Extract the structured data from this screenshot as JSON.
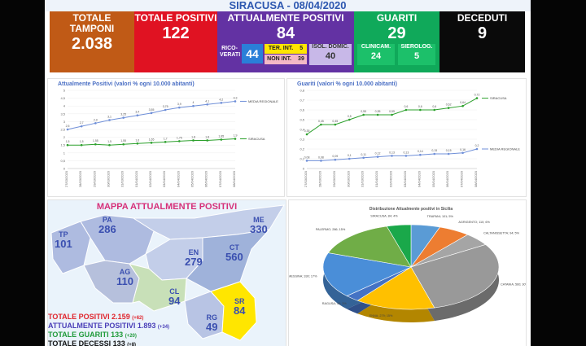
{
  "header": {
    "title": "SIRACUSA -  08/04/2020"
  },
  "tiles": {
    "tamponi": {
      "label": "TOTALE TAMPONI",
      "value": "2.038"
    },
    "positivi": {
      "label": "TOTALE POSITIVI",
      "value": "122"
    },
    "attualmente": {
      "label": "ATTUALMENTE POSITIVI",
      "value": "84",
      "ricoverati_label_1": "RICO-",
      "ricoverati_label_2": "VERATI",
      "ricoverati_value": "44",
      "ter_int_label": "TER. INT.",
      "ter_int_value": "5",
      "non_int_label": "NON INT.",
      "non_int_value": "39",
      "isol_label_1": "ISOL. DOMIC.",
      "isol_value": "40"
    },
    "guariti": {
      "label": "GUARITI",
      "value": "29",
      "clinicam_label": "CLINICAM.",
      "clinicam_value": "24",
      "sierolog_label": "SIEROLOG.",
      "sierolog_value": "5"
    },
    "deceduti": {
      "label": "DECEDUTI",
      "value": "9"
    }
  },
  "map": {
    "title": "MAPPA ATTUALMENTE POSITIVI",
    "provinces": [
      {
        "code": "TP",
        "value": "101"
      },
      {
        "code": "PA",
        "value": "286"
      },
      {
        "code": "ME",
        "value": "330"
      },
      {
        "code": "AG",
        "value": "110"
      },
      {
        "code": "EN",
        "value": "279"
      },
      {
        "code": "CT",
        "value": "560"
      },
      {
        "code": "CL",
        "value": "94"
      },
      {
        "code": "RG",
        "value": "49"
      },
      {
        "code": "SR",
        "value": "84"
      }
    ],
    "stats": [
      {
        "label": "TOTALE POSITIVI 2.159",
        "delta": "(+62)",
        "color": "#e0242c"
      },
      {
        "label": "ATTUALMENTE POSITIVI 1.893",
        "delta": "(+34)",
        "color": "#4a3fb8"
      },
      {
        "label": "TOTALE GUARITI 133",
        "delta": "(+20)",
        "color": "#1f9a3a"
      },
      {
        "label": "TOTALE DECESSI 133",
        "delta": "(+8)",
        "color": "#111111"
      }
    ]
  },
  "chart_data": [
    {
      "type": "line",
      "title": "Attualmente Positivi (valori % ogni 10.000 abitanti)",
      "x": [
        "27/03/2020",
        "28/03/2020",
        "29/03/2020",
        "30/03/2020",
        "31/03/2020",
        "01/04/2020",
        "02/04/2020",
        "03/04/2020",
        "04/04/2020",
        "05/04/2020",
        "06/04/2020",
        "07/04/2020",
        "08/04/2020"
      ],
      "ylim": [
        0,
        5
      ],
      "yticks": [
        "0",
        "0,5",
        "1",
        "1,5",
        "2",
        "2,5",
        "3",
        "3,5",
        "4",
        "4,5",
        "5"
      ],
      "series": [
        {
          "name": "MEDIA REGIONALE",
          "color": "#6f8fd8",
          "values": [
            2.5,
            2.7,
            2.9,
            3.1,
            3.25,
            3.4,
            3.55,
            3.75,
            3.9,
            4.0,
            4.1,
            4.2,
            4.3
          ]
        },
        {
          "name": "SIRACUSA",
          "color": "#2ca02c",
          "values": [
            1.5,
            1.5,
            1.55,
            1.5,
            1.55,
            1.6,
            1.65,
            1.7,
            1.75,
            1.8,
            1.8,
            1.85,
            1.9
          ]
        }
      ],
      "legend": "right"
    },
    {
      "type": "line",
      "title": "Guariti (valori % ogni 10.000 abitanti)",
      "x": [
        "27/03/2020",
        "28/03/2020",
        "29/03/2020",
        "30/03/2020",
        "31/03/2020",
        "01/04/2020",
        "02/04/2020",
        "03/04/2020",
        "04/04/2020",
        "05/04/2020",
        "06/04/2020",
        "07/04/2020",
        "08/04/2020"
      ],
      "ylim": [
        0,
        0.8
      ],
      "yticks": [
        "0",
        "0,1",
        "0,2",
        "0,3",
        "0,4",
        "0,5",
        "0,6",
        "0,7",
        "0,8"
      ],
      "series": [
        {
          "name": "SIRACUSA",
          "color": "#2ca02c",
          "values": [
            0.35,
            0.45,
            0.45,
            0.5,
            0.55,
            0.55,
            0.55,
            0.6,
            0.6,
            0.6,
            0.62,
            0.64,
            0.72
          ]
        },
        {
          "name": "MEDIA REGIONALE",
          "color": "#6f8fd8",
          "values": [
            0.08,
            0.08,
            0.09,
            0.1,
            0.11,
            0.12,
            0.13,
            0.13,
            0.14,
            0.15,
            0.15,
            0.16,
            0.2
          ]
        }
      ],
      "legend": "right"
    },
    {
      "type": "pie",
      "title": "Distribuzione Attualmente positivi in Sicilia",
      "labels": [
        "TRAPANI",
        "AGRIGENTO",
        "CALTANISSETTA",
        "CATANIA",
        "ENNA",
        "RAGUSA",
        "MESSINA",
        "PALERMO",
        "SIRACUSA"
      ],
      "values": [
        101,
        110,
        94,
        560,
        279,
        49,
        330,
        286,
        84
      ],
      "colors": [
        "#5a9bd5",
        "#ed7d31",
        "#a5a5a5",
        "#999999",
        "#ffc000",
        "#4472c4",
        "#4a8ed8",
        "#70ad47",
        "#1aa84a"
      ],
      "data_labels": [
        "TRAPANI; 101; 5%",
        "AGRIGENTO; 110; 6%",
        "CALTANISSETTA; 94; 5%",
        "CATANIA; 560; 30%",
        "ENNA; 279; 15%",
        "RAGUSA; 49; 3%",
        "MESSINA; 330; 17%",
        "PALERMO; 286; 15%",
        "SIRACUSA; 84; 4%"
      ]
    }
  ]
}
